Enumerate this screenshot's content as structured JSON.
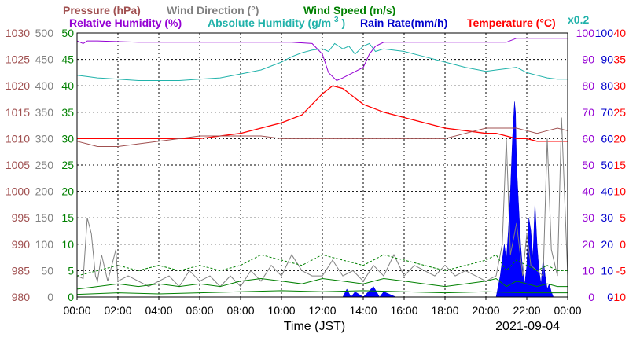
{
  "chart_data": {
    "type": "line",
    "date_label": "2021-09-04",
    "xlabel": "Time (JST)",
    "x_ticks": [
      "00:00",
      "02:00",
      "04:00",
      "06:00",
      "08:00",
      "10:00",
      "12:00",
      "14:00",
      "16:00",
      "18:00",
      "20:00",
      "22:00",
      "00:00"
    ],
    "x_range_hours": [
      0,
      24
    ],
    "legend_row1": [
      {
        "key": "pressure",
        "label": "Pressure (hPa)",
        "color": "#a05050"
      },
      {
        "key": "wind_dir",
        "label": "Wind Direction (°)",
        "color": "#808080"
      },
      {
        "key": "wind_speed",
        "label": "Wind Speed (m/s)",
        "color": "#008000"
      }
    ],
    "legend_row2": [
      {
        "key": "rh",
        "label": "Relative Humidity (%)",
        "color": "#9400d3"
      },
      {
        "key": "ah",
        "label": "Absolute Humidity (g/m",
        "color": "#20b2aa"
      },
      {
        "key": "rain",
        "label": "Rain Rate(mm/h)",
        "color": "#0000cd"
      },
      {
        "key": "temp",
        "label": "Temperature (°C)",
        "color": "#ff0000"
      }
    ],
    "ah_superscript": "3",
    "ah_suffix": ")",
    "ah_scale_note": "x0.2",
    "axes": {
      "pressure": {
        "ticks": [
          "1030",
          "1025",
          "1020",
          "1015",
          "1010",
          "1005",
          "1000",
          "995",
          "990",
          "985",
          "980"
        ],
        "range": [
          980,
          1030
        ],
        "color": "#a05050"
      },
      "wind_dir": {
        "ticks": [
          "500",
          "450",
          "400",
          "350",
          "300",
          "250",
          "200",
          "150",
          "100",
          "50",
          "0"
        ],
        "range": [
          0,
          500
        ],
        "color": "#808080"
      },
      "wind_speed": {
        "ticks": [
          "50",
          "45",
          "40",
          "35",
          "30",
          "25",
          "20",
          "15",
          "10",
          "5",
          "0"
        ],
        "range": [
          0,
          50
        ],
        "color": "#008000"
      },
      "rh": {
        "ticks": [
          "100",
          "90",
          "80",
          "70",
          "60",
          "50",
          "40",
          "30",
          "20",
          "10",
          "0"
        ],
        "range": [
          0,
          100
        ],
        "color": "#9400d3"
      },
      "rain": {
        "ticks": [
          "100",
          "90",
          "80",
          "70",
          "60",
          "50",
          "40",
          "30",
          "20",
          "10",
          "0"
        ],
        "range": [
          0,
          100
        ],
        "color": "#0000cd"
      },
      "temp": {
        "ticks": [
          "40",
          "35",
          "30",
          "25",
          "20",
          "15",
          "10",
          "5",
          "0",
          "-5",
          "-10"
        ],
        "range": [
          -10,
          40
        ],
        "color": "#ff0000"
      }
    },
    "grid": true,
    "series": [
      {
        "key": "rh",
        "color": "#9400d3",
        "axis": "rh",
        "x": [
          0,
          0.3,
          0.5,
          1,
          3,
          6,
          9,
          10.5,
          11.5,
          12,
          12.3,
          12.7,
          13,
          13.5,
          14,
          14.3,
          14.6,
          15,
          18,
          20,
          21,
          21.5,
          22,
          23.5,
          24
        ],
        "y": [
          97,
          96,
          97,
          97,
          96.5,
          96.5,
          96.5,
          96.5,
          96,
          92,
          85,
          82,
          83,
          85,
          87,
          92,
          95,
          96.5,
          96.5,
          96.5,
          96.5,
          98,
          98,
          98,
          98
        ]
      },
      {
        "key": "ah",
        "color": "#20b2aa",
        "axis": "rh",
        "x": [
          0,
          0.5,
          1,
          2,
          3,
          4,
          5,
          6,
          7,
          8,
          9,
          10,
          10.5,
          11,
          11.5,
          12,
          12.3,
          12.6,
          13,
          13.3,
          13.6,
          14,
          14.3,
          14.6,
          15,
          16,
          17,
          18,
          19,
          20,
          20.5,
          21,
          21.5,
          22,
          22.5,
          23,
          23.5,
          24
        ],
        "y": [
          84,
          83.5,
          83,
          82.5,
          82,
          82,
          82,
          82.5,
          83,
          84.5,
          86,
          89,
          91,
          92.5,
          93.5,
          94,
          93,
          96,
          94,
          95,
          92,
          95,
          96,
          93,
          94,
          93,
          91,
          89,
          87,
          85.5,
          86,
          86.5,
          87,
          85,
          84,
          83,
          82.5,
          82.5
        ]
      },
      {
        "key": "temp",
        "color": "#ff0000",
        "axis": "temp",
        "x": [
          0,
          1,
          2,
          3,
          4,
          5,
          6,
          7,
          8,
          9,
          10,
          11,
          11.5,
          12,
          12.5,
          13,
          13.5,
          14,
          15,
          16,
          17,
          18,
          19,
          20,
          20.5,
          21,
          21.5,
          22,
          22.5,
          23,
          23.5,
          24
        ],
        "y": [
          20,
          20,
          20,
          20,
          20,
          20,
          20,
          20.5,
          21,
          22,
          23,
          24.5,
          26.5,
          28.5,
          30,
          29.5,
          28,
          26.5,
          25,
          24,
          23,
          22,
          21.5,
          21,
          21,
          20.5,
          20,
          20,
          19.5,
          19.5,
          19.5,
          19.5
        ]
      },
      {
        "key": "pressure",
        "color": "#a05050",
        "axis": "pressure",
        "x": [
          0,
          0.5,
          1,
          1.5,
          2,
          3,
          4,
          5,
          6,
          7,
          8,
          9,
          10,
          11,
          12,
          12.5,
          13,
          14,
          15,
          16,
          17,
          18,
          19,
          19.5,
          20,
          20.5,
          21,
          21.5,
          22,
          22.5,
          23,
          23.5,
          24
        ],
        "y": [
          1009.5,
          1009,
          1008.5,
          1008.5,
          1008.5,
          1009,
          1009.5,
          1010,
          1010.5,
          1010.5,
          1010.5,
          1010.5,
          1010,
          1010,
          1010,
          1010,
          1010,
          1010,
          1010,
          1010,
          1010,
          1010,
          1011,
          1011.5,
          1012,
          1012,
          1012,
          1012,
          1011.5,
          1011,
          1011.5,
          1012,
          1011.5
        ]
      },
      {
        "key": "wind_dir",
        "color": "#808080",
        "axis": "wind_dir",
        "x": [
          0,
          0.3,
          0.5,
          0.7,
          0.9,
          1,
          1.2,
          1.5,
          1.7,
          1.9,
          2,
          2.5,
          3,
          3.5,
          4,
          4.5,
          5,
          5.5,
          6,
          6.5,
          7,
          7.5,
          8,
          8.5,
          9,
          9.5,
          10,
          10.5,
          11,
          11.5,
          12,
          12.5,
          13,
          13.5,
          14,
          14.5,
          15,
          15.5,
          16,
          16.5,
          17,
          17.5,
          18,
          18.5,
          19,
          19.5,
          20,
          20.5,
          20.8,
          21,
          21.2,
          21.5,
          21.8,
          22,
          22.2,
          22.5,
          22.8,
          23,
          23.2,
          23.5,
          23.7,
          24
        ],
        "y": [
          40,
          35,
          150,
          120,
          40,
          30,
          80,
          30,
          60,
          90,
          30,
          40,
          30,
          20,
          30,
          40,
          20,
          50,
          30,
          40,
          20,
          40,
          20,
          50,
          30,
          60,
          40,
          80,
          50,
          40,
          40,
          70,
          40,
          50,
          30,
          60,
          40,
          80,
          40,
          60,
          50,
          40,
          60,
          40,
          50,
          40,
          30,
          40,
          100,
          300,
          80,
          140,
          40,
          120,
          60,
          50,
          40,
          300,
          90,
          40,
          340,
          40
        ]
      },
      {
        "key": "wind_speed_max",
        "color": "#008000",
        "axis": "wind_speed",
        "x": [
          0,
          1,
          2,
          3,
          4,
          5,
          6,
          7,
          8,
          9,
          10,
          11,
          12,
          13,
          14,
          15,
          16,
          17,
          18,
          19,
          20,
          20.5,
          21,
          21.5,
          22,
          22.5,
          23,
          23.5,
          24
        ],
        "y": [
          4,
          5,
          6,
          5,
          6,
          5,
          6,
          5,
          6,
          8,
          7,
          6,
          8,
          7,
          6,
          8,
          7,
          6,
          5,
          6,
          7,
          8,
          5,
          7,
          6,
          5,
          6,
          5,
          5
        ]
      },
      {
        "key": "wind_speed_avg",
        "color": "#008000",
        "axis": "wind_speed",
        "x": [
          0,
          1,
          2,
          3,
          4,
          5,
          6,
          7,
          8,
          9,
          10,
          11,
          12,
          13,
          14,
          15,
          16,
          17,
          18,
          19,
          20,
          20.5,
          21,
          21.5,
          22,
          22.5,
          23,
          23.5,
          24
        ],
        "y": [
          1.5,
          2,
          2.5,
          2,
          2.5,
          2,
          2.5,
          2,
          3,
          3.5,
          3,
          2.5,
          3.5,
          3,
          2.5,
          3.5,
          3,
          2.5,
          2,
          2.5,
          3,
          3.5,
          2,
          3,
          2.5,
          2,
          2.5,
          2,
          2
        ]
      },
      {
        "key": "wind_speed_min",
        "color": "#008000",
        "axis": "wind_speed",
        "x": [
          0,
          2,
          4,
          6,
          8,
          10,
          12,
          14,
          16,
          18,
          20,
          22,
          24
        ],
        "y": [
          0.5,
          0.8,
          0.6,
          0.8,
          1,
          1.2,
          1,
          1.2,
          1,
          0.8,
          1,
          0.8,
          0.8
        ]
      }
    ],
    "rain": {
      "x": [
        0,
        13,
        13.2,
        13.4,
        13.6,
        14,
        14.5,
        14.8,
        15,
        15.3,
        15.6,
        16,
        17,
        20.5,
        20.7,
        20.9,
        21,
        21.1,
        21.2,
        21.3,
        21.4,
        21.45,
        21.5,
        21.6,
        21.7,
        21.8,
        21.9,
        22,
        22.1,
        22.2,
        22.3,
        22.4,
        22.5,
        22.6,
        22.7,
        22.8,
        22.9,
        23,
        23.1,
        23.2,
        23.3,
        23.5,
        23.7,
        24
      ],
      "y": [
        0,
        0,
        3,
        0,
        2,
        0,
        4,
        0,
        2,
        1,
        0,
        0,
        0,
        0,
        8,
        20,
        14,
        25,
        40,
        60,
        74,
        70,
        50,
        35,
        20,
        10,
        5,
        12,
        30,
        25,
        15,
        36,
        20,
        10,
        5,
        15,
        8,
        3,
        5,
        2,
        0,
        0,
        0,
        0
      ]
    }
  }
}
